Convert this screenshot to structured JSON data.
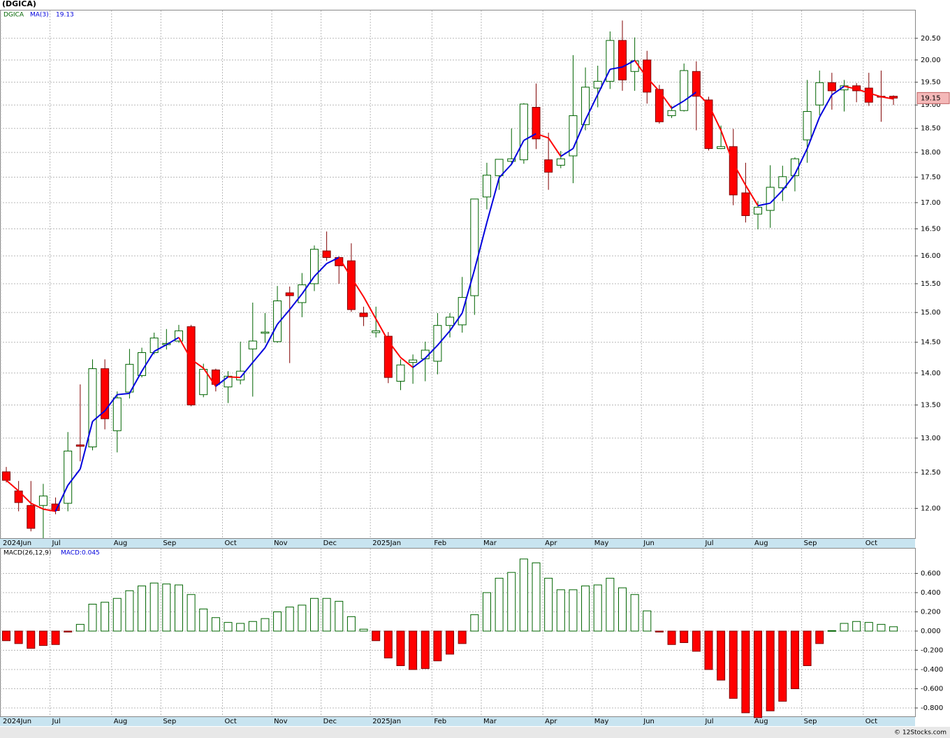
{
  "chart_data": [
    {
      "type": "candlestick",
      "title": "(DGICA)",
      "name": "DGICA",
      "last_price_color": "#f4b8b8",
      "categories": [
        "2024Jun",
        null,
        null,
        null,
        "Jul",
        null,
        null,
        null,
        null,
        "Aug",
        null,
        null,
        null,
        "Sep",
        null,
        null,
        null,
        null,
        "Oct",
        null,
        null,
        null,
        "Nov",
        null,
        null,
        null,
        "Dec",
        null,
        null,
        null,
        "2025Jan",
        null,
        null,
        null,
        null,
        "Feb",
        null,
        null,
        null,
        "Mar",
        null,
        null,
        null,
        null,
        "Apr",
        null,
        null,
        null,
        "May",
        null,
        null,
        null,
        "Jun",
        null,
        null,
        null,
        null,
        "Jul",
        null,
        null,
        null,
        "Aug",
        null,
        null,
        null,
        "Sep",
        null,
        null,
        null,
        null,
        "Oct",
        null,
        null
      ],
      "open": [
        12.51,
        12.24,
        12.04,
        12.04,
        12.06,
        12.07,
        12.9,
        12.87,
        14.07,
        13.11,
        13.7,
        13.96,
        14.33,
        14.46,
        14.52,
        14.76,
        13.66,
        14.05,
        13.78,
        13.89,
        14.39,
        14.65,
        14.51,
        15.34,
        15.17,
        15.5,
        16.09,
        15.97,
        15.91,
        14.99,
        14.66,
        14.6,
        13.87,
        14.17,
        14.23,
        14.19,
        14.78,
        14.79,
        15.29,
        17.11,
        17.53,
        17.82,
        17.85,
        18.95,
        17.85,
        17.74,
        17.93,
        18.58,
        19.37,
        19.52,
        20.45,
        19.74,
        20.0,
        19.34,
        18.77,
        18.88,
        19.74,
        19.11,
        18.08,
        18.12,
        17.19,
        16.78,
        16.85,
        17.29,
        17.53,
        18.26,
        19.0,
        19.49,
        19.33,
        19.42,
        19.37,
        19.19,
        19.19
      ],
      "high": [
        12.58,
        12.38,
        12.38,
        12.34,
        12.15,
        13.09,
        13.82,
        14.22,
        14.22,
        13.71,
        14.39,
        14.41,
        14.66,
        14.72,
        14.79,
        14.79,
        14.15,
        14.07,
        14.03,
        14.51,
        15.17,
        14.99,
        15.46,
        15.45,
        15.69,
        16.19,
        16.45,
        15.99,
        16.23,
        15.1,
        15.1,
        14.67,
        14.22,
        14.3,
        14.51,
        14.99,
        14.99,
        15.62,
        17.07,
        17.79,
        17.86,
        18.5,
        19.04,
        19.47,
        18.41,
        18.03,
        20.11,
        19.83,
        19.87,
        20.66,
        20.92,
        20.52,
        20.21,
        19.44,
        18.98,
        19.92,
        19.97,
        19.18,
        18.56,
        18.49,
        17.79,
        17.03,
        17.74,
        17.73,
        17.9,
        19.55,
        19.76,
        19.71,
        19.55,
        19.48,
        19.71,
        19.76,
        19.21
      ],
      "low": [
        12.36,
        11.96,
        11.69,
        11.6,
        11.92,
        11.96,
        12.66,
        12.82,
        13.13,
        12.79,
        13.6,
        13.93,
        14.3,
        14.38,
        14.49,
        13.48,
        13.62,
        13.71,
        13.53,
        13.82,
        13.63,
        14.49,
        14.49,
        14.16,
        14.92,
        15.37,
        15.91,
        15.5,
        15.01,
        14.77,
        14.58,
        13.84,
        13.73,
        13.83,
        13.87,
        13.98,
        14.58,
        14.66,
        14.96,
        16.87,
        17.25,
        17.74,
        17.77,
        18.07,
        17.25,
        17.68,
        17.38,
        18.46,
        18.95,
        19.35,
        19.31,
        19.31,
        19.03,
        18.6,
        18.72,
        18.86,
        18.46,
        18.04,
        18.07,
        16.95,
        16.62,
        16.49,
        16.52,
        17.03,
        17.22,
        17.79,
        18.78,
        18.9,
        18.86,
        19.06,
        18.98,
        18.64,
        19.0
      ],
      "close": [
        12.39,
        12.08,
        11.73,
        12.17,
        11.97,
        12.81,
        12.88,
        14.07,
        13.29,
        13.61,
        14.14,
        14.33,
        14.57,
        14.48,
        14.69,
        13.5,
        14.06,
        13.82,
        13.95,
        14.03,
        14.52,
        14.67,
        15.2,
        15.29,
        15.48,
        16.12,
        15.97,
        15.82,
        15.05,
        14.93,
        14.69,
        13.93,
        14.13,
        14.21,
        14.37,
        14.78,
        14.92,
        15.26,
        17.07,
        17.54,
        17.86,
        17.87,
        19.02,
        18.28,
        17.6,
        17.87,
        18.77,
        19.39,
        19.52,
        20.45,
        19.55,
        19.98,
        19.28,
        18.64,
        18.88,
        19.76,
        19.19,
        18.08,
        18.12,
        17.15,
        16.75,
        16.91,
        17.3,
        17.51,
        17.87,
        18.86,
        19.49,
        19.31,
        19.42,
        19.31,
        19.06,
        19.17,
        19.15
      ],
      "up_color": "#ffffff",
      "up_edge": "#006400",
      "down_color": "#ff0000",
      "down_edge": "#800000",
      "series": [
        {
          "name": "MA(3)",
          "rising_color": "#0000dd",
          "falling_color": "#ff0000",
          "values": [
            12.39,
            12.24,
            12.07,
            11.99,
            11.96,
            12.32,
            12.55,
            13.25,
            13.41,
            13.66,
            13.68,
            14.03,
            14.35,
            14.46,
            14.58,
            14.22,
            14.08,
            13.79,
            13.94,
            13.93,
            14.17,
            14.41,
            14.8,
            15.05,
            15.32,
            15.63,
            15.86,
            15.97,
            15.61,
            15.27,
            14.89,
            14.52,
            14.25,
            14.09,
            14.24,
            14.45,
            14.69,
            14.99,
            15.75,
            16.62,
            17.49,
            17.76,
            18.25,
            18.39,
            18.3,
            17.92,
            18.08,
            18.68,
            19.23,
            19.79,
            19.84,
            19.99,
            19.6,
            19.3,
            18.93,
            19.09,
            19.28,
            19.01,
            18.46,
            17.78,
            17.34,
            16.94,
            16.99,
            17.24,
            17.56,
            18.08,
            18.74,
            19.22,
            19.41,
            19.35,
            19.26,
            19.18,
            19.13
          ]
        }
      ],
      "log_scale": true,
      "grid": true,
      "ylim": [
        11.6,
        21.16
      ],
      "yticks": [
        {
          "value": 12,
          "label": "12.00"
        },
        {
          "value": 12.5,
          "label": "12.50"
        },
        {
          "value": 13,
          "label": "13.00"
        },
        {
          "value": 13.5,
          "label": "13.50"
        },
        {
          "value": 14,
          "label": "14.00"
        },
        {
          "value": 14.5,
          "label": "14.50"
        },
        {
          "value": 15,
          "label": "15.00"
        },
        {
          "value": 15.5,
          "label": "15.50"
        },
        {
          "value": 16,
          "label": "16.00"
        },
        {
          "value": 16.5,
          "label": "16.50"
        },
        {
          "value": 17,
          "label": "17.00"
        },
        {
          "value": 17.5,
          "label": "17.50"
        },
        {
          "value": 18,
          "label": "18.00"
        },
        {
          "value": 18.5,
          "label": "18.50"
        },
        {
          "value": 19,
          "label": "19.00"
        },
        {
          "value": 19.5,
          "label": "19.50"
        },
        {
          "value": 20,
          "label": "20.00"
        },
        {
          "value": 20.5,
          "label": "20.50"
        }
      ]
    },
    {
      "type": "bar",
      "name": "MACD(26,12,9)",
      "legend_label": "MACD:0.045",
      "pos_color": "#ffffff",
      "pos_edge": "#006400",
      "neg_color": "#ff0000",
      "neg_edge": "#800000",
      "categories": [
        "2024Jun",
        null,
        null,
        null,
        "Jul",
        null,
        null,
        null,
        null,
        "Aug",
        null,
        null,
        null,
        "Sep",
        null,
        null,
        null,
        null,
        "Oct",
        null,
        null,
        null,
        "Nov",
        null,
        null,
        null,
        "Dec",
        null,
        null,
        null,
        "2025Jan",
        null,
        null,
        null,
        null,
        "Feb",
        null,
        null,
        null,
        "Mar",
        null,
        null,
        null,
        null,
        "Apr",
        null,
        null,
        null,
        "May",
        null,
        null,
        null,
        "Jun",
        null,
        null,
        null,
        null,
        "Jul",
        null,
        null,
        null,
        "Aug",
        null,
        null,
        null,
        "Sep",
        null,
        null,
        null,
        null,
        "Oct",
        null,
        null
      ],
      "values": [
        -0.1,
        -0.13,
        -0.18,
        -0.15,
        -0.14,
        -0.01,
        0.07,
        0.28,
        0.3,
        0.34,
        0.42,
        0.47,
        0.5,
        0.49,
        0.48,
        0.38,
        0.23,
        0.14,
        0.09,
        0.08,
        0.1,
        0.13,
        0.2,
        0.25,
        0.27,
        0.34,
        0.34,
        0.31,
        0.15,
        0.02,
        -0.1,
        -0.28,
        -0.36,
        -0.4,
        -0.39,
        -0.31,
        -0.24,
        -0.13,
        0.17,
        0.4,
        0.55,
        0.61,
        0.75,
        0.71,
        0.55,
        0.43,
        0.43,
        0.47,
        0.48,
        0.55,
        0.45,
        0.38,
        0.21,
        -0.01,
        -0.14,
        -0.12,
        -0.21,
        -0.4,
        -0.51,
        -0.7,
        -0.85,
        -0.9,
        -0.83,
        -0.73,
        -0.6,
        -0.36,
        -0.13,
        0.005,
        0.08,
        0.1,
        0.09,
        0.07,
        0.045
      ],
      "grid": true,
      "ylim": [
        -0.887,
        0.858
      ],
      "yticks": [
        {
          "value": 0.6,
          "label": "0.600"
        },
        {
          "value": 0.4,
          "label": "0.400"
        },
        {
          "value": 0.2,
          "label": "0.200"
        },
        {
          "value": 0,
          "label": "0.000"
        },
        {
          "value": -0.2,
          "label": "-0.200"
        },
        {
          "value": -0.4,
          "label": "-0.400"
        },
        {
          "value": -0.6,
          "label": "-0.600"
        },
        {
          "value": -0.8,
          "label": "-0.800"
        }
      ]
    }
  ],
  "footer": "© 12Stocks.com"
}
